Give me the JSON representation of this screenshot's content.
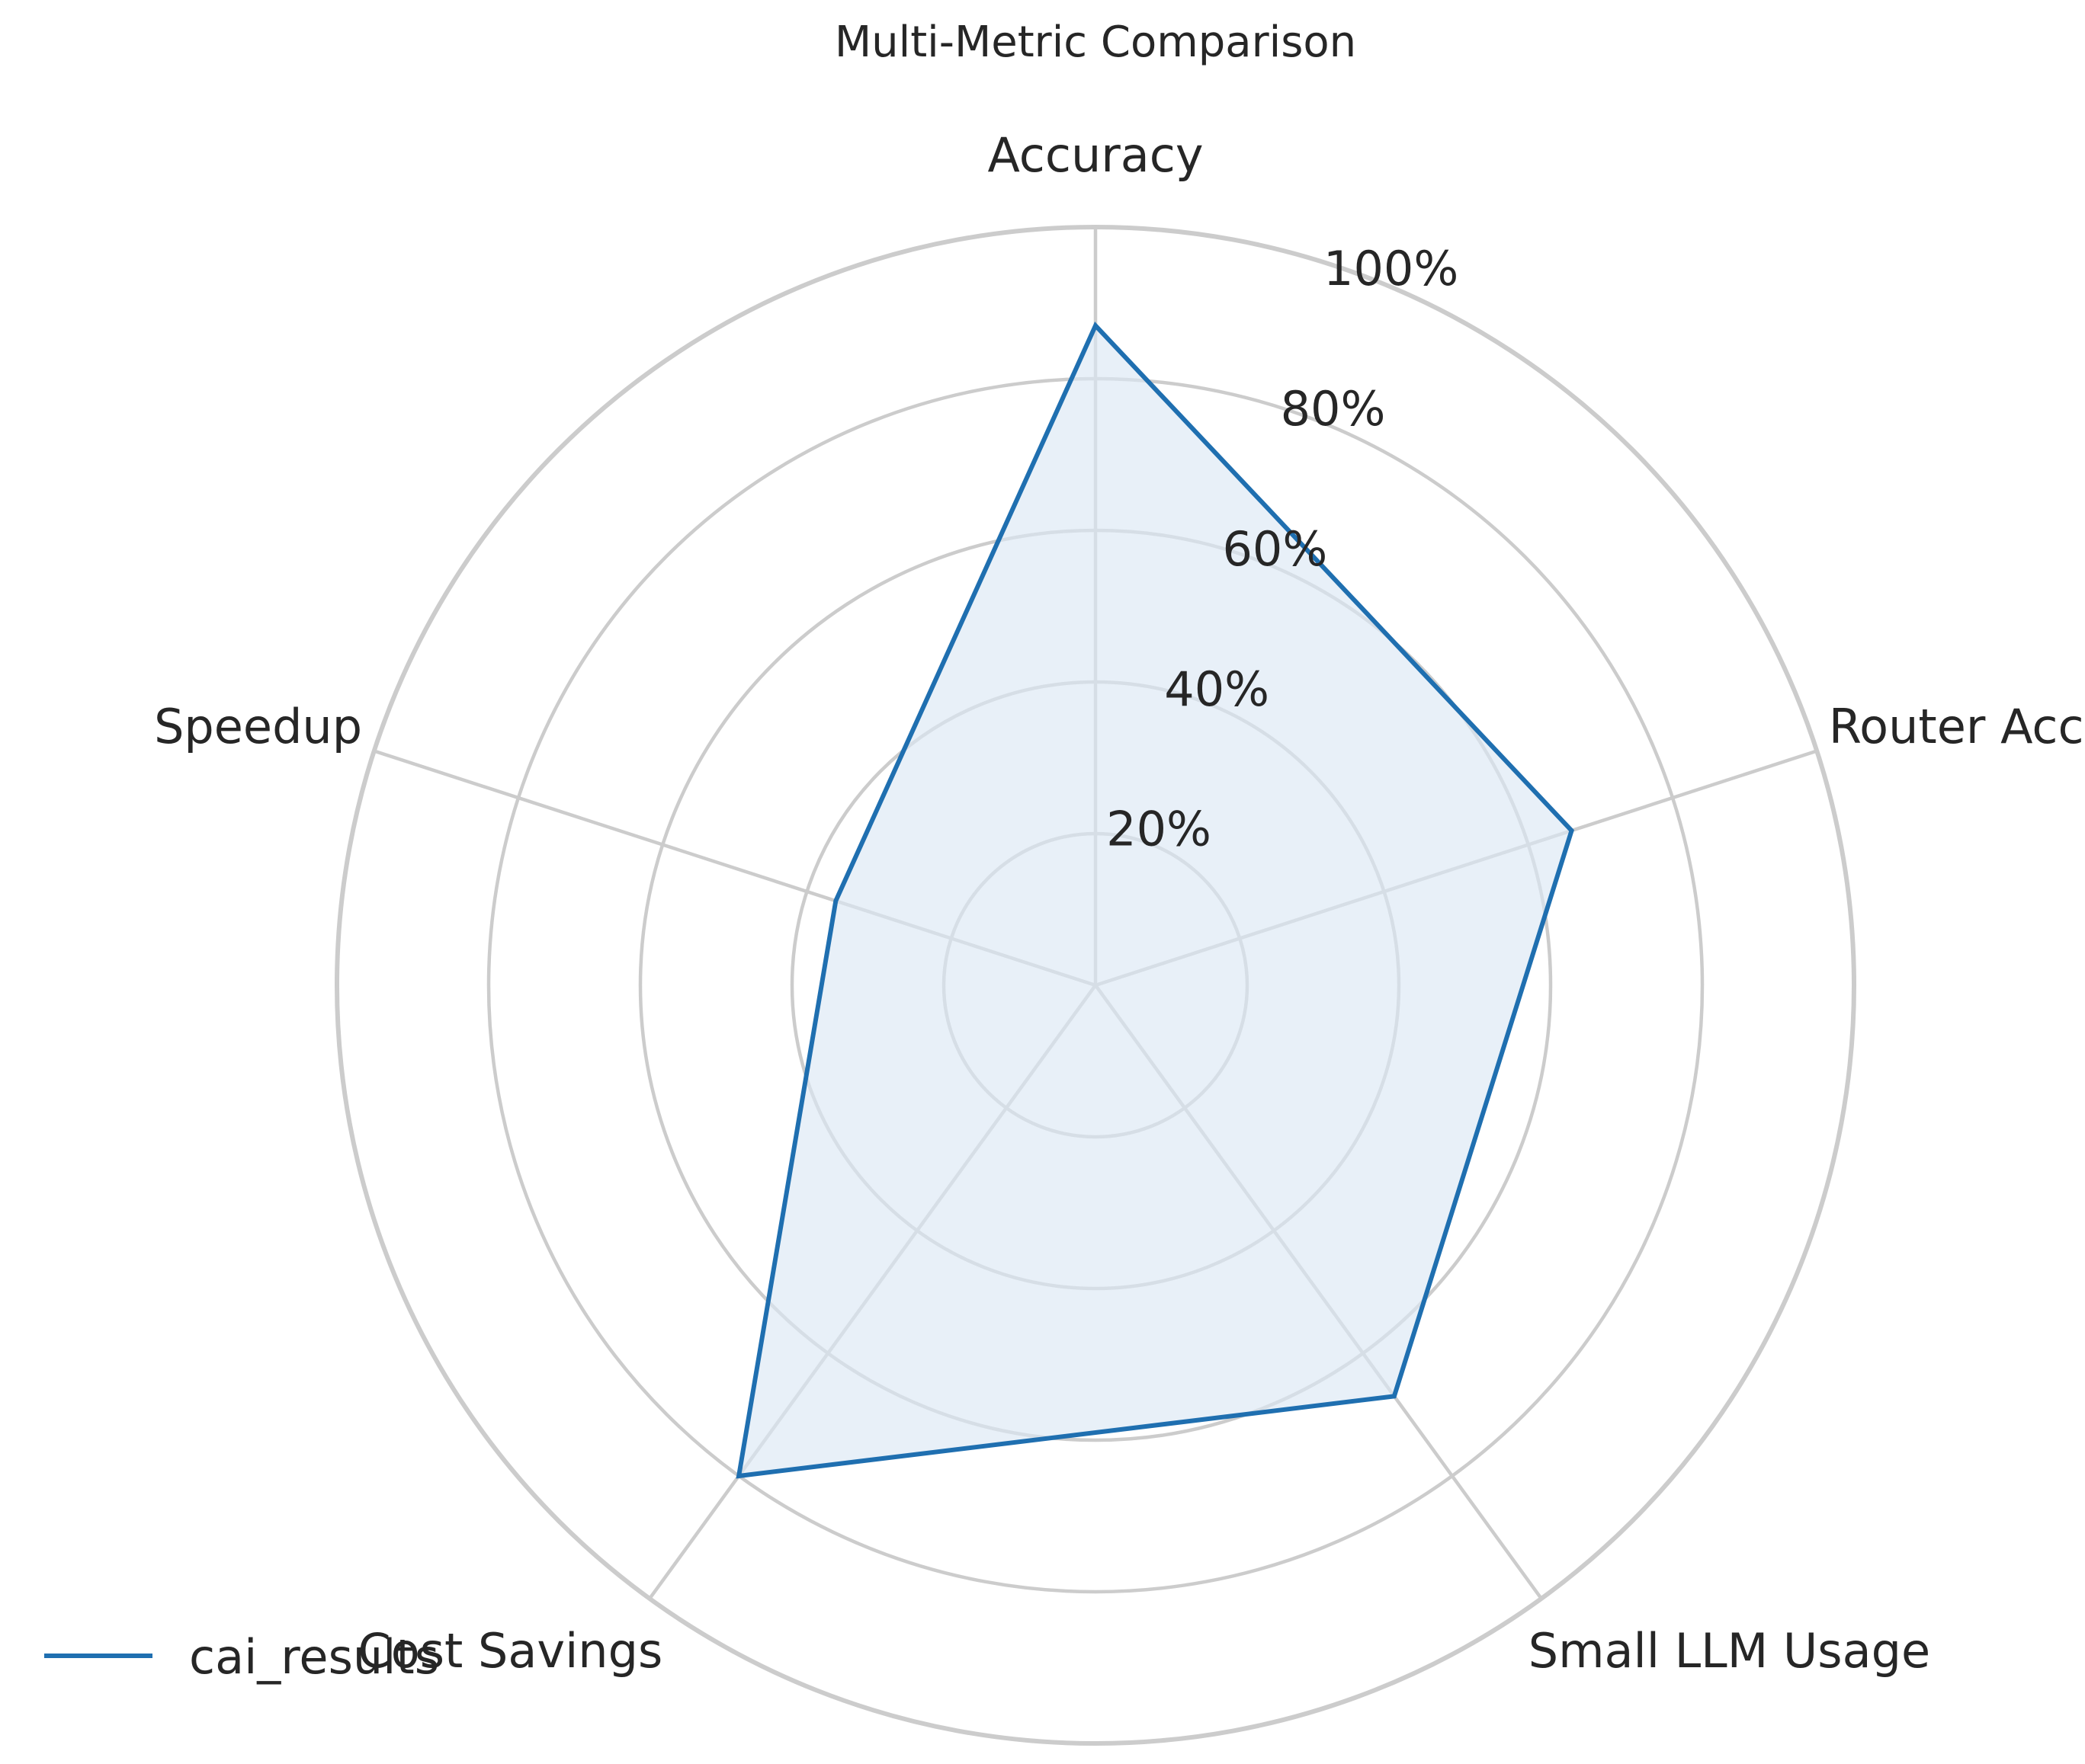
{
  "chart_data": {
    "type": "radar",
    "title": "Multi-Metric Comparison",
    "categories": [
      "Accuracy",
      "Router Accuracy",
      "Small LLM Usage",
      "Cost Savings",
      "Speedup"
    ],
    "series": [
      {
        "name": "cai_results",
        "values": [
          87,
          66,
          67,
          80,
          36
        ]
      }
    ],
    "rlim": [
      0,
      100
    ],
    "rticks": [
      20,
      40,
      60,
      80,
      100
    ],
    "rtick_labels": [
      "20%",
      "40%",
      "60%",
      "80%",
      "100%"
    ],
    "grid": true,
    "legend_position": "bottom-left",
    "colors": {
      "line": "#1f6fb0",
      "fill": "#dce8f4",
      "grid": "#cccccc",
      "text": "#262626"
    }
  }
}
